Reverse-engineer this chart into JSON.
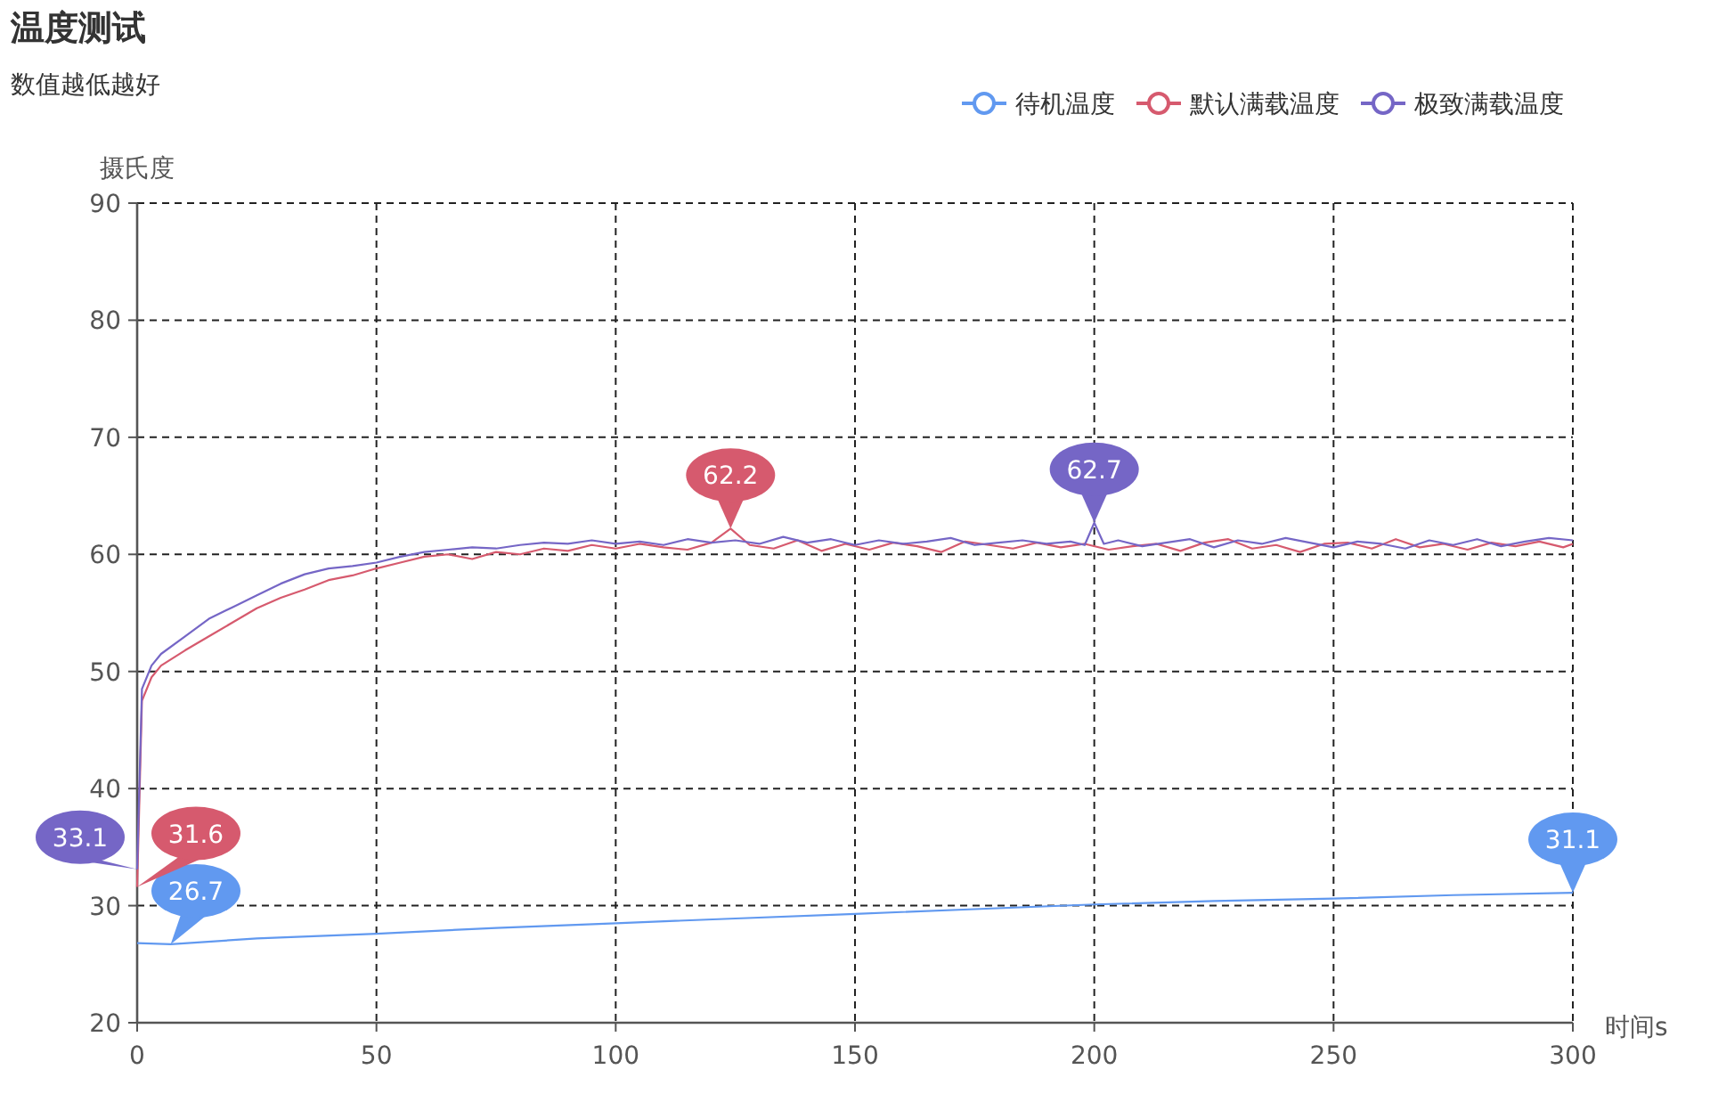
{
  "chart_data": {
    "type": "line",
    "title": "温度测试",
    "subtitle": "数值越低越好",
    "xlabel": "时间s",
    "ylabel": "摄氏度",
    "xlim": [
      0,
      300
    ],
    "xticks": [
      0,
      50,
      100,
      150,
      200,
      250,
      300
    ],
    "ylim": [
      20,
      90
    ],
    "yticks": [
      20,
      30,
      40,
      50,
      60,
      70,
      80,
      90
    ],
    "grid": true,
    "legend": "top right",
    "marker": "none",
    "line_style": "solid",
    "series": [
      {
        "name": "待机温度",
        "color": "#6199f0",
        "x": [
          0,
          7,
          25,
          50,
          75,
          100,
          125,
          150,
          175,
          200,
          225,
          250,
          275,
          300
        ],
        "values": [
          26.8,
          26.7,
          27.2,
          27.6,
          28.1,
          28.5,
          28.9,
          29.3,
          29.7,
          30.1,
          30.4,
          30.6,
          30.9,
          31.1
        ]
      },
      {
        "name": "默认满载温度",
        "color": "#d65a6e",
        "x": [
          0,
          1,
          3,
          5,
          10,
          15,
          20,
          25,
          30,
          35,
          40,
          45,
          50,
          55,
          60,
          65,
          70,
          75,
          80,
          85,
          90,
          95,
          100,
          105,
          110,
          115,
          120,
          124,
          128,
          133,
          138,
          143,
          148,
          153,
          158,
          163,
          168,
          173,
          178,
          183,
          188,
          193,
          198,
          203,
          208,
          213,
          218,
          223,
          228,
          233,
          238,
          243,
          248,
          253,
          258,
          263,
          268,
          273,
          278,
          283,
          288,
          293,
          298,
          300
        ],
        "values": [
          31.6,
          47.5,
          49.5,
          50.5,
          51.8,
          53,
          54.2,
          55.4,
          56.3,
          57,
          57.8,
          58.2,
          58.8,
          59.3,
          59.8,
          60,
          59.6,
          60.2,
          60,
          60.5,
          60.3,
          60.8,
          60.5,
          60.9,
          60.6,
          60.4,
          61,
          62.2,
          60.8,
          60.5,
          61.2,
          60.3,
          60.9,
          60.4,
          61,
          60.7,
          60.2,
          61.1,
          60.8,
          60.5,
          61,
          60.6,
          60.9,
          60.4,
          60.7,
          60.9,
          60.3,
          61,
          61.3,
          60.5,
          60.8,
          60.2,
          60.9,
          61,
          60.5,
          61.3,
          60.6,
          60.9,
          60.4,
          61,
          60.7,
          61.1,
          60.6,
          60.9
        ]
      },
      {
        "name": "极致满载温度",
        "color": "#7566c6",
        "x": [
          0,
          1,
          3,
          5,
          10,
          15,
          20,
          25,
          30,
          35,
          40,
          45,
          50,
          55,
          60,
          65,
          70,
          75,
          80,
          85,
          90,
          95,
          100,
          105,
          110,
          115,
          120,
          125,
          130,
          135,
          140,
          145,
          150,
          155,
          160,
          165,
          170,
          175,
          180,
          185,
          190,
          195,
          198,
          200,
          202,
          205,
          210,
          215,
          220,
          225,
          230,
          235,
          240,
          245,
          250,
          255,
          260,
          265,
          270,
          275,
          280,
          285,
          290,
          295,
          300
        ],
        "values": [
          33.1,
          48.5,
          50.5,
          51.5,
          53,
          54.5,
          55.5,
          56.5,
          57.5,
          58.3,
          58.8,
          59,
          59.3,
          59.8,
          60.2,
          60.4,
          60.6,
          60.5,
          60.8,
          61,
          60.9,
          61.2,
          60.9,
          61.1,
          60.8,
          61.3,
          61,
          61.2,
          60.9,
          61.5,
          61,
          61.3,
          60.8,
          61.2,
          60.9,
          61.1,
          61.4,
          60.8,
          61,
          61.2,
          60.9,
          61.1,
          60.8,
          62.7,
          60.9,
          61.2,
          60.7,
          61,
          61.3,
          60.6,
          61.2,
          60.9,
          61.4,
          61,
          60.6,
          61.1,
          60.9,
          60.5,
          61.2,
          60.8,
          61.3,
          60.7,
          61.1,
          61.4,
          61.2
        ]
      }
    ],
    "annotations": [
      {
        "text": "26.7",
        "x": 7,
        "y": 26.7
      },
      {
        "text": "31.1",
        "x": 300,
        "y": 31.1
      },
      {
        "text": "31.6",
        "x": 0,
        "y": 31.6
      },
      {
        "text": "62.2",
        "x": 124,
        "y": 62.2
      },
      {
        "text": "33.1",
        "x": 0,
        "y": 33.1
      },
      {
        "text": "62.7",
        "x": 200,
        "y": 62.7
      }
    ]
  }
}
